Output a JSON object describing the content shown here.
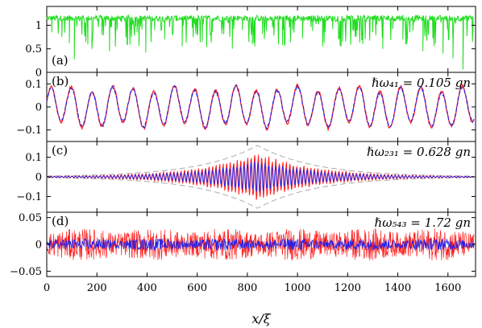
{
  "chart_data": [
    {
      "type": "line",
      "panel_label": "(a)",
      "annotation": "",
      "ylim": [
        0,
        1.4
      ],
      "yticks": [
        0,
        0.5,
        1
      ],
      "ytick_labels": [
        "0",
        "0.5",
        "1"
      ],
      "series": [
        {
          "color": "#22dd22",
          "baseline": 1.15,
          "x": [
            0,
            20,
            40,
            60,
            75,
            90,
            100,
            110,
            130,
            150,
            165,
            180,
            200,
            220,
            240,
            250,
            265,
            280,
            300,
            320,
            340,
            360,
            380,
            395,
            410,
            430,
            450,
            470,
            480,
            500,
            520,
            540,
            560,
            580,
            600,
            620,
            640,
            660,
            680,
            700,
            720,
            740,
            760,
            780,
            800,
            820,
            840,
            860,
            880,
            900,
            920,
            940,
            960,
            980,
            1000,
            1020,
            1040,
            1060,
            1080,
            1100,
            1120,
            1140,
            1160,
            1180,
            1200,
            1220,
            1240,
            1260,
            1280,
            1300,
            1320,
            1340,
            1360,
            1380,
            1400,
            1420,
            1440,
            1460,
            1480,
            1500,
            1520,
            1540,
            1560,
            1580,
            1600,
            1620,
            1640,
            1660,
            1680,
            1700
          ],
          "y": [
            1.15,
            0.85,
            1.2,
            0.75,
            1.1,
            0.62,
            1.18,
            0.28,
            1.1,
            0.95,
            1.2,
            0.5,
            1.15,
            0.8,
            1.2,
            0.45,
            1.1,
            0.9,
            1.2,
            0.6,
            1.18,
            0.85,
            1.1,
            0.42,
            1.2,
            0.9,
            1.15,
            0.7,
            1.2,
            0.88,
            1.1,
            0.55,
            1.2,
            0.95,
            1.15,
            0.65,
            1.2,
            0.85,
            1.18,
            0.92,
            1.1,
            0.5,
            1.2,
            0.9,
            1.15,
            0.6,
            1.2,
            0.82,
            1.1,
            0.95,
            1.2,
            0.58,
            1.15,
            0.9,
            1.2,
            0.72,
            1.1,
            0.88,
            1.2,
            0.55,
            1.15,
            0.92,
            1.2,
            0.65,
            1.1,
            0.9,
            1.2,
            0.6,
            1.15,
            0.85,
            1.2,
            0.5,
            1.1,
            0.92,
            1.2,
            0.7,
            1.15,
            0.88,
            1.2,
            0.45,
            1.1,
            0.9,
            1.18,
            0.4,
            1.15,
            0.3,
            1.2,
            0.06,
            1.1,
            0.85
          ]
        }
      ]
    },
    {
      "type": "line",
      "panel_label": "(b)",
      "annotation": "ℏω₄₁ = 0.105 gn",
      "ylim": [
        -0.15,
        0.15
      ],
      "yticks": [
        -0.1,
        0,
        0.1
      ],
      "ytick_labels": [
        "−0.1",
        "0",
        "0.1"
      ],
      "series": [
        {
          "color": "#ff2020",
          "wavelength": 82,
          "amplitude": 0.08,
          "phase": 0.3
        },
        {
          "color": "#2020ee",
          "wavelength": 82,
          "amplitude": 0.075,
          "phase": 0.3
        }
      ]
    },
    {
      "type": "line",
      "panel_label": "(c)",
      "annotation": "ℏω₂₃₁ = 0.628 gn",
      "ylim": [
        -0.18,
        0.18
      ],
      "yticks": [
        -0.1,
        0,
        0.1
      ],
      "ytick_labels": [
        "−0.1",
        "0",
        "0.1"
      ],
      "envelope_center": 840,
      "envelope_peak": 0.16,
      "envelope_decay": 230,
      "series": [
        {
          "color": "#ff2020",
          "wavelength": 14,
          "amplitude": 0.13
        },
        {
          "color": "#2020ee",
          "wavelength": 14,
          "amplitude": 0.09
        },
        {
          "color": "#aaaaaa",
          "role": "envelope"
        }
      ]
    },
    {
      "type": "line",
      "panel_label": "(d)",
      "annotation": "ℏω₅₄₃ = 1.72 gn",
      "ylim": [
        -0.06,
        0.06
      ],
      "yticks": [
        -0.05,
        0,
        0.05
      ],
      "ytick_labels": [
        "−0.05",
        "0",
        "0.05"
      ],
      "series": [
        {
          "color": "#ff2020",
          "amplitude": 0.03
        },
        {
          "color": "#2020ee",
          "amplitude": 0.011
        }
      ]
    }
  ],
  "x_axis": {
    "xlim": [
      0,
      1710
    ],
    "ticks": [
      0,
      200,
      400,
      600,
      800,
      1000,
      1200,
      1400,
      1600
    ],
    "tick_labels": [
      "0",
      "200",
      "400",
      "600",
      "800",
      "1000",
      "1200",
      "1400",
      "1600"
    ],
    "label": "x/ξ"
  }
}
